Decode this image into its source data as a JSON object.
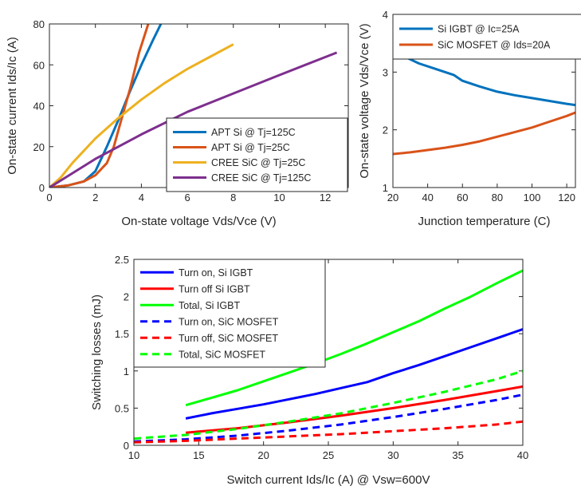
{
  "colors": {
    "blue": "#0072BD",
    "orange": "#D95319",
    "yellow": "#EDB120",
    "purple": "#7E2F8E",
    "pure_blue": "#0000FF",
    "pure_red": "#FF0000",
    "pure_green": "#00FF00"
  },
  "chart_data": [
    {
      "id": "conduction",
      "type": "line",
      "xlabel": "On-state voltage Vds/Vce (V)",
      "ylabel": "On-state current Ids/Ic (A)",
      "xlim": [
        0,
        13
      ],
      "ylim": [
        0,
        80
      ],
      "xticks": [
        0,
        2,
        4,
        6,
        8,
        10,
        12
      ],
      "yticks": [
        0,
        20,
        40,
        60,
        80
      ],
      "legend_position": "bottom-right",
      "series": [
        {
          "name": "APT Si @ Tj=125C",
          "color": "#0072BD",
          "dash": "solid",
          "x": [
            0,
            0.8,
            1.5,
            2.0,
            2.5,
            3.0,
            3.5,
            4.0,
            4.5,
            4.85
          ],
          "y": [
            0,
            1,
            3,
            8,
            20,
            33,
            47,
            60,
            72,
            80
          ]
        },
        {
          "name": "APT Si @ Tj=25C",
          "color": "#D95319",
          "dash": "solid",
          "x": [
            0,
            0.8,
            1.5,
            2.0,
            2.5,
            2.8,
            3.1,
            3.5,
            3.9,
            4.3
          ],
          "y": [
            0,
            1,
            3,
            6,
            12,
            20,
            32,
            48,
            66,
            80
          ]
        },
        {
          "name": "CREE SiC @ Tj=25C",
          "color": "#EDB120",
          "dash": "solid",
          "x": [
            0,
            0.5,
            1,
            2,
            3,
            4,
            5,
            6,
            7,
            8
          ],
          "y": [
            0,
            5,
            12,
            24,
            34,
            43,
            51,
            58,
            64,
            70
          ]
        },
        {
          "name": "CREE SiC @ Tj=125C",
          "color": "#7E2F8E",
          "dash": "solid",
          "x": [
            0,
            1,
            2,
            3,
            4,
            6,
            8,
            10,
            12.5
          ],
          "y": [
            0,
            7,
            14,
            20,
            26,
            37,
            46,
            55,
            66
          ]
        }
      ]
    },
    {
      "id": "temperature",
      "type": "line",
      "xlabel": "Junction temperature (C)",
      "ylabel": "On-state voltage Vds/Vce (V)",
      "xlim": [
        20,
        125
      ],
      "ylim": [
        1,
        4
      ],
      "xticks": [
        20,
        40,
        60,
        80,
        100,
        120
      ],
      "yticks": [
        1,
        2,
        3,
        4
      ],
      "legend_position": "top",
      "series": [
        {
          "name": "Si IGBT @ Ic=25A",
          "color": "#0072BD",
          "dash": "solid",
          "x": [
            28,
            35,
            45,
            55,
            60,
            70,
            80,
            90,
            100,
            110,
            120,
            125
          ],
          "y": [
            3.25,
            3.15,
            3.05,
            2.95,
            2.85,
            2.75,
            2.66,
            2.6,
            2.55,
            2.5,
            2.45,
            2.43
          ]
        },
        {
          "name": "SiC MOSFET @ Ids=20A",
          "color": "#D95319",
          "dash": "solid",
          "x": [
            20,
            30,
            40,
            50,
            60,
            70,
            80,
            90,
            100,
            110,
            120,
            125
          ],
          "y": [
            1.58,
            1.61,
            1.65,
            1.69,
            1.74,
            1.8,
            1.88,
            1.96,
            2.04,
            2.14,
            2.24,
            2.3
          ]
        }
      ]
    },
    {
      "id": "switching",
      "type": "line",
      "xlabel": "Switch current Ids/Ic (A) @ Vsw=600V",
      "ylabel": "Switching losses (mJ)",
      "xlim": [
        10,
        40
      ],
      "ylim": [
        0,
        2.5
      ],
      "xticks": [
        10,
        15,
        20,
        25,
        30,
        35,
        40
      ],
      "yticks": [
        0,
        0.5,
        1,
        1.5,
        2,
        2.5
      ],
      "legend_position": "top-left",
      "series": [
        {
          "name": "Turn on, Si IGBT",
          "color": "#0000FF",
          "dash": "solid",
          "x": [
            14,
            16,
            18,
            20,
            22,
            24,
            26,
            28,
            30,
            32,
            34,
            36,
            38,
            40
          ],
          "y": [
            0.36,
            0.43,
            0.49,
            0.55,
            0.62,
            0.69,
            0.77,
            0.85,
            0.97,
            1.08,
            1.2,
            1.32,
            1.44,
            1.56
          ]
        },
        {
          "name": "Turn off Si IGBT",
          "color": "#FF0000",
          "dash": "solid",
          "x": [
            14,
            18,
            22,
            26,
            30,
            34,
            38,
            40
          ],
          "y": [
            0.17,
            0.23,
            0.31,
            0.4,
            0.5,
            0.61,
            0.73,
            0.79
          ]
        },
        {
          "name": "Total, Si IGBT",
          "color": "#00FF00",
          "dash": "solid",
          "x": [
            14,
            16,
            18,
            20,
            22,
            24,
            26,
            28,
            30,
            32,
            34,
            36,
            38,
            40
          ],
          "y": [
            0.54,
            0.64,
            0.74,
            0.86,
            0.98,
            1.1,
            1.23,
            1.37,
            1.52,
            1.67,
            1.84,
            2.0,
            2.18,
            2.35
          ]
        },
        {
          "name": "Turn on, SiC MOSFET",
          "color": "#0000FF",
          "dash": "dashed",
          "x": [
            10,
            14,
            18,
            22,
            26,
            30,
            34,
            38,
            40
          ],
          "y": [
            0.05,
            0.08,
            0.13,
            0.2,
            0.28,
            0.38,
            0.49,
            0.61,
            0.68
          ]
        },
        {
          "name": "Turn off, SiC MOSFET",
          "color": "#FF0000",
          "dash": "dashed",
          "x": [
            10,
            14,
            18,
            22,
            26,
            30,
            34,
            38,
            40
          ],
          "y": [
            0.04,
            0.06,
            0.09,
            0.12,
            0.15,
            0.19,
            0.23,
            0.28,
            0.32
          ]
        },
        {
          "name": "Total, SiC MOSFET",
          "color": "#00FF00",
          "dash": "dashed",
          "x": [
            10,
            14,
            18,
            22,
            26,
            30,
            34,
            38,
            40
          ],
          "y": [
            0.09,
            0.14,
            0.22,
            0.32,
            0.43,
            0.57,
            0.72,
            0.89,
            1.0
          ]
        }
      ]
    }
  ]
}
